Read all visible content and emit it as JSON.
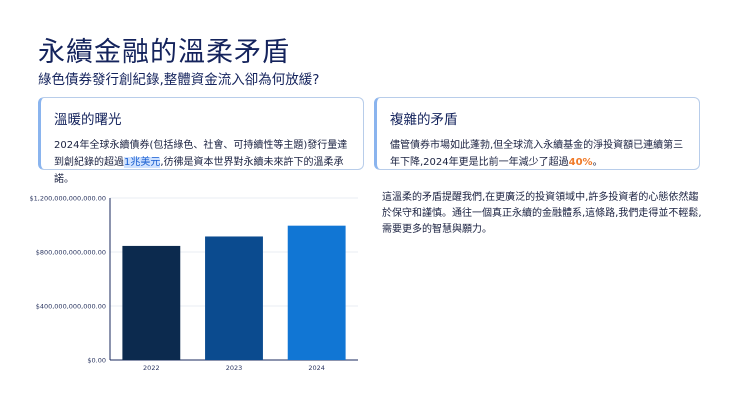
{
  "page": {
    "title": "永續金融的溫柔矛盾",
    "subtitle": "綠色債券發行創紀錄,整體資金流入卻為何放緩?"
  },
  "card_warm": {
    "title": "溫暖的曙光",
    "text_before": "2024年全球永續債券(包括綠色、社會、可持續性等主題)發行量達到創紀錄的超過",
    "highlight": "1兆美元",
    "text_after": ",彷彿是資本世界對永續未來許下的溫柔承諾。"
  },
  "card_complex": {
    "title": "複雜的矛盾",
    "text_before": "儘管債券市場如此蓬勃,但全球流入永續基金的淨投資額已連續第三年下降,2024年更是比前一年減少了超過",
    "highlight": "40%",
    "text_after": "。"
  },
  "side_text": "這溫柔的矛盾提醒我們,在更廣泛的投資領域中,許多投資者的心態依然趨於保守和謹慎。通往一個真正永續的金融體系,這條路,我們走得並不輕鬆,需要更多的智慧與願力。",
  "colors": {
    "bars": [
      "#0c2a4e",
      "#0b4b8f",
      "#1176d4"
    ],
    "accent": "#1a5fd0",
    "highlight_orange": "#f07a28"
  },
  "chart_data": {
    "type": "bar",
    "categories": [
      "2022",
      "2023",
      "2024"
    ],
    "values": [
      845000000000,
      915000000000,
      995000000000
    ],
    "ylim": [
      0,
      1200000000000
    ],
    "ytick_values": [
      0,
      400000000000,
      800000000000,
      1200000000000
    ],
    "ytick_labels": [
      "$0.00",
      "$400,000,000,000.00",
      "$800,000,000,000.00",
      "$1,200,000,000,000.00"
    ],
    "grid": true,
    "legend": "none"
  }
}
